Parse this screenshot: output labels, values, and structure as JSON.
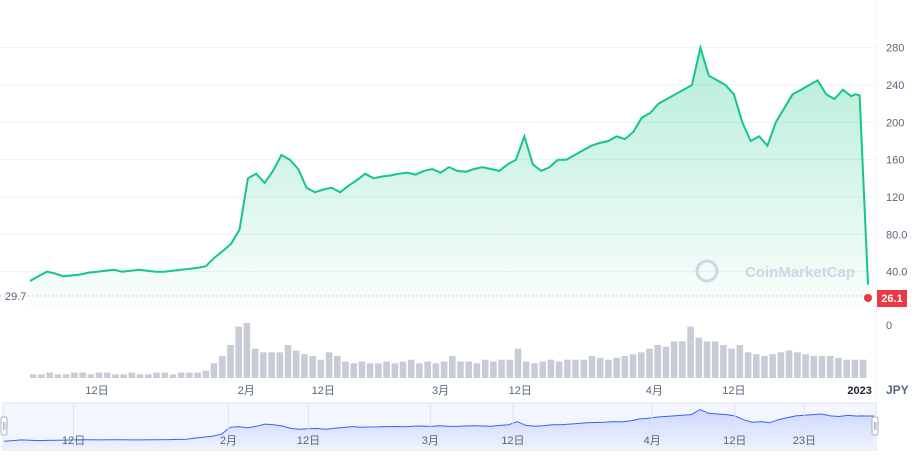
{
  "chart_data": {
    "type": "area",
    "currency": "JPY",
    "watermark": "CoinMarketCap",
    "colors": {
      "line": "#16c784",
      "fill_top": "#16c784",
      "volume": "#c8ccd6",
      "current_badge": "#ea3943",
      "nav_line": "#3861fb",
      "grid": "#eff2f5"
    },
    "ylim": [
      0,
      300
    ],
    "y_ticks": [
      "280",
      "240",
      "200",
      "160",
      "120",
      "80.0",
      "40.0",
      "0"
    ],
    "y_tick_values": [
      280,
      240,
      200,
      160,
      120,
      80,
      40,
      0
    ],
    "x_ticks": [
      "12日",
      "2月",
      "12日",
      "3月",
      "12日",
      "4月",
      "12日",
      "2023"
    ],
    "x_tick_positions": [
      0.08,
      0.258,
      0.35,
      0.49,
      0.585,
      0.745,
      0.84,
      0.99
    ],
    "start_label": "29.7",
    "current_value_label": "26.1",
    "current_value": 26.1,
    "start_value": 29.7,
    "series": [
      {
        "x": [
          0,
          0.01,
          0.02,
          0.03,
          0.04,
          0.05,
          0.06,
          0.07,
          0.08,
          0.09,
          0.1,
          0.11,
          0.12,
          0.13,
          0.14,
          0.15,
          0.16,
          0.17,
          0.18,
          0.19,
          0.2,
          0.21,
          0.22,
          0.23,
          0.24,
          0.25,
          0.26,
          0.27,
          0.28,
          0.29,
          0.3,
          0.31,
          0.32,
          0.33,
          0.34,
          0.35,
          0.36,
          0.37,
          0.38,
          0.39,
          0.4,
          0.41,
          0.42,
          0.43,
          0.44,
          0.45,
          0.46,
          0.47,
          0.48,
          0.49,
          0.5,
          0.51,
          0.52,
          0.53,
          0.54,
          0.55,
          0.56,
          0.57,
          0.58,
          0.59,
          0.6,
          0.61,
          0.62,
          0.63,
          0.64,
          0.65,
          0.66,
          0.67,
          0.68,
          0.69,
          0.7,
          0.71,
          0.72,
          0.73,
          0.74,
          0.75,
          0.76,
          0.77,
          0.78,
          0.79,
          0.8,
          0.81,
          0.82,
          0.83,
          0.84,
          0.85,
          0.86,
          0.87,
          0.88,
          0.89,
          0.9,
          0.91,
          0.92,
          0.93,
          0.94,
          0.95,
          0.96,
          0.97,
          0.98,
          0.985,
          0.99,
          1.0
        ],
        "values": [
          30,
          35,
          40,
          38,
          35,
          36,
          37,
          39,
          40,
          41,
          42,
          40,
          41,
          42,
          41,
          40,
          40,
          41,
          42,
          43,
          44,
          46,
          55,
          62,
          70,
          85,
          140,
          145,
          135,
          148,
          165,
          160,
          150,
          130,
          125,
          128,
          130,
          125,
          132,
          138,
          145,
          140,
          142,
          143,
          145,
          146,
          144,
          148,
          150,
          146,
          152,
          148,
          147,
          150,
          152,
          150,
          148,
          155,
          160,
          185,
          155,
          148,
          152,
          160,
          160,
          165,
          170,
          175,
          178,
          180,
          185,
          182,
          190,
          205,
          210,
          220,
          225,
          230,
          235,
          240,
          280,
          250,
          245,
          240,
          230,
          200,
          180,
          185,
          175,
          200,
          215,
          230,
          235,
          240,
          245,
          230,
          225,
          235,
          228,
          230,
          229,
          26.1
        ]
      }
    ],
    "volume": [
      2,
      2,
      3,
      2,
      2,
      3,
      3,
      2,
      3,
      3,
      2,
      2,
      3,
      2,
      2,
      3,
      3,
      2,
      3,
      3,
      3,
      4,
      8,
      12,
      18,
      28,
      30,
      16,
      14,
      14,
      14,
      18,
      15,
      13,
      12,
      10,
      14,
      12,
      9,
      8,
      9,
      8,
      8,
      9,
      8,
      9,
      10,
      8,
      9,
      8,
      9,
      12,
      9,
      9,
      8,
      10,
      9,
      10,
      10,
      16,
      9,
      8,
      9,
      10,
      9,
      10,
      10,
      10,
      12,
      11,
      10,
      11,
      12,
      13,
      14,
      16,
      18,
      17,
      20,
      20,
      28,
      22,
      20,
      20,
      18,
      16,
      18,
      14,
      13,
      12,
      13,
      14,
      15,
      14,
      13,
      12,
      12,
      12,
      11,
      10,
      10,
      10
    ],
    "navigator": {
      "x_ticks": [
        "12日",
        "2月",
        "12日",
        "3月",
        "12日",
        "4月",
        "12日",
        "23日"
      ],
      "x_tick_positions": [
        0.08,
        0.258,
        0.35,
        0.49,
        0.585,
        0.745,
        0.84,
        0.92
      ]
    }
  }
}
